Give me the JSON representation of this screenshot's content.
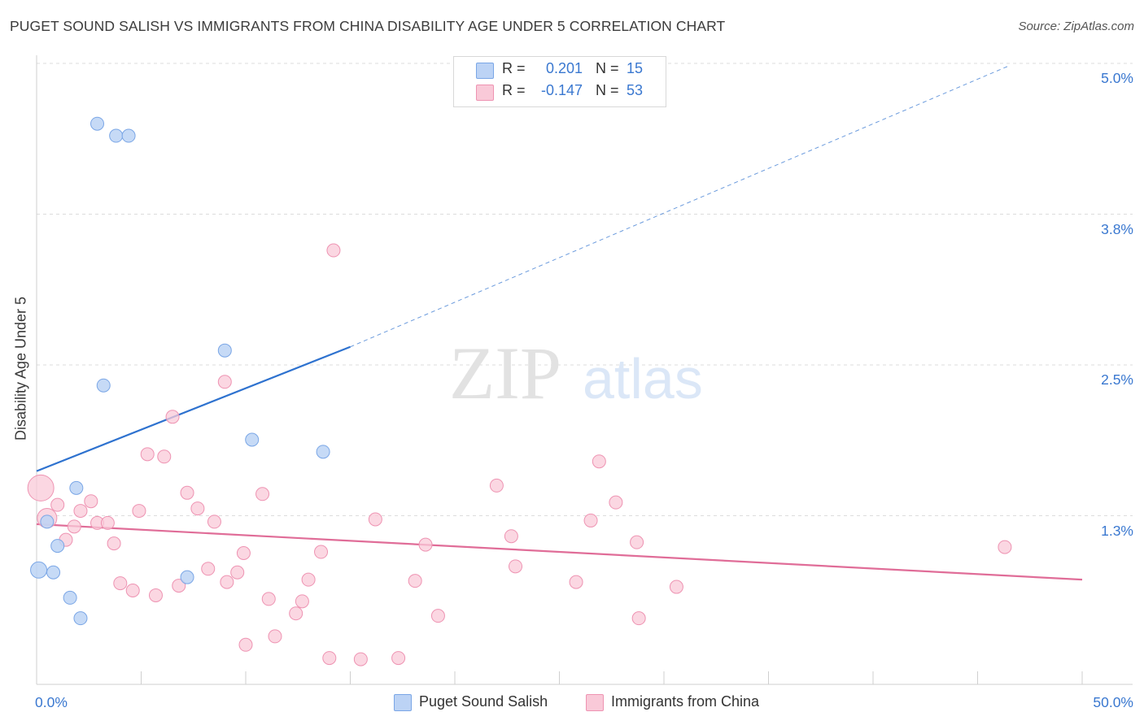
{
  "title": "PUGET SOUND SALISH VS IMMIGRANTS FROM CHINA DISABILITY AGE UNDER 5 CORRELATION CHART",
  "source": "Source: ZipAtlas.com",
  "watermark": {
    "zip": "ZIP",
    "atlas": "atlas"
  },
  "stats": {
    "r_label": "R =",
    "n_label": "N =",
    "series1": {
      "r": "0.201",
      "n": "15"
    },
    "series2": {
      "r": "-0.147",
      "n": "53"
    }
  },
  "colors": {
    "series1_fill": "#bcd3f5",
    "series1_stroke": "#7aa6e6",
    "series1_line": "#2e72cf",
    "series2_fill": "#f9c9d8",
    "series2_stroke": "#ee93b2",
    "series2_line": "#e06d98",
    "tick_label": "#3a78d0",
    "grid": "#dddddd"
  },
  "chart_data": {
    "type": "scatter",
    "xlabel": "",
    "ylabel": "Disability Age Under 5",
    "xlim": [
      0,
      50
    ],
    "ylim": [
      0,
      5.0
    ],
    "x_tick_labels": [
      "0.0%",
      "50.0%"
    ],
    "y_ticks": [
      1.25,
      2.5,
      3.75,
      5.0
    ],
    "y_tick_labels": [
      "1.3%",
      "2.5%",
      "3.8%",
      "5.0%"
    ],
    "grid": "horizontal dashed",
    "legend_position": "bottom-center",
    "series": [
      {
        "name": "Puget Sound Salish",
        "trend": {
          "x": [
            0,
            15
          ],
          "y": [
            1.62,
            2.65
          ],
          "extended_to": [
            46.5,
            4.98
          ],
          "style": "solid then dashed"
        },
        "points": [
          {
            "x": 2.9,
            "y": 4.5
          },
          {
            "x": 3.8,
            "y": 4.4
          },
          {
            "x": 4.4,
            "y": 4.4
          },
          {
            "x": 9.0,
            "y": 2.62
          },
          {
            "x": 3.2,
            "y": 2.33
          },
          {
            "x": 10.3,
            "y": 1.88
          },
          {
            "x": 13.7,
            "y": 1.78
          },
          {
            "x": 1.9,
            "y": 1.48
          },
          {
            "x": 0.5,
            "y": 1.2
          },
          {
            "x": 1.0,
            "y": 1.0
          },
          {
            "x": 0.1,
            "y": 0.8
          },
          {
            "x": 0.8,
            "y": 0.78
          },
          {
            "x": 7.2,
            "y": 0.74
          },
          {
            "x": 1.6,
            "y": 0.57
          },
          {
            "x": 2.1,
            "y": 0.4
          }
        ]
      },
      {
        "name": "Immigrants from China",
        "trend": {
          "x": [
            0,
            50
          ],
          "y": [
            1.18,
            0.72
          ]
        },
        "points": [
          {
            "x": 0.2,
            "y": 1.48
          },
          {
            "x": 0.5,
            "y": 1.23
          },
          {
            "x": 1.0,
            "y": 1.34
          },
          {
            "x": 1.4,
            "y": 1.05
          },
          {
            "x": 1.8,
            "y": 1.16
          },
          {
            "x": 2.1,
            "y": 1.29
          },
          {
            "x": 2.6,
            "y": 1.37
          },
          {
            "x": 2.9,
            "y": 1.19
          },
          {
            "x": 3.4,
            "y": 1.19
          },
          {
            "x": 3.7,
            "y": 1.02
          },
          {
            "x": 4.0,
            "y": 0.69
          },
          {
            "x": 4.6,
            "y": 0.63
          },
          {
            "x": 4.9,
            "y": 1.29
          },
          {
            "x": 5.3,
            "y": 1.76
          },
          {
            "x": 5.7,
            "y": 0.59
          },
          {
            "x": 6.1,
            "y": 1.74
          },
          {
            "x": 6.5,
            "y": 2.07
          },
          {
            "x": 6.8,
            "y": 0.67
          },
          {
            "x": 7.2,
            "y": 1.44
          },
          {
            "x": 7.7,
            "y": 1.31
          },
          {
            "x": 8.2,
            "y": 0.81
          },
          {
            "x": 8.5,
            "y": 1.2
          },
          {
            "x": 9.0,
            "y": 2.36
          },
          {
            "x": 9.1,
            "y": 0.7
          },
          {
            "x": 9.6,
            "y": 0.78
          },
          {
            "x": 9.9,
            "y": 0.94
          },
          {
            "x": 10.0,
            "y": 0.18
          },
          {
            "x": 10.8,
            "y": 1.43
          },
          {
            "x": 11.1,
            "y": 0.56
          },
          {
            "x": 11.4,
            "y": 0.25
          },
          {
            "x": 12.4,
            "y": 0.44
          },
          {
            "x": 12.7,
            "y": 0.54
          },
          {
            "x": 13.0,
            "y": 0.72
          },
          {
            "x": 13.6,
            "y": 0.95
          },
          {
            "x": 14.2,
            "y": 3.45
          },
          {
            "x": 14.0,
            "y": 0.07
          },
          {
            "x": 15.5,
            "y": 0.06
          },
          {
            "x": 16.2,
            "y": 1.22
          },
          {
            "x": 17.3,
            "y": 0.07
          },
          {
            "x": 18.1,
            "y": 0.71
          },
          {
            "x": 18.6,
            "y": 1.01
          },
          {
            "x": 19.2,
            "y": 0.42
          },
          {
            "x": 22.0,
            "y": 1.5
          },
          {
            "x": 22.7,
            "y": 1.08
          },
          {
            "x": 22.9,
            "y": 0.83
          },
          {
            "x": 25.8,
            "y": 0.7
          },
          {
            "x": 26.5,
            "y": 1.21
          },
          {
            "x": 26.9,
            "y": 1.7
          },
          {
            "x": 27.7,
            "y": 1.36
          },
          {
            "x": 28.7,
            "y": 1.03
          },
          {
            "x": 28.8,
            "y": 0.4
          },
          {
            "x": 30.6,
            "y": 0.66
          },
          {
            "x": 46.3,
            "y": 0.99
          }
        ]
      }
    ]
  }
}
